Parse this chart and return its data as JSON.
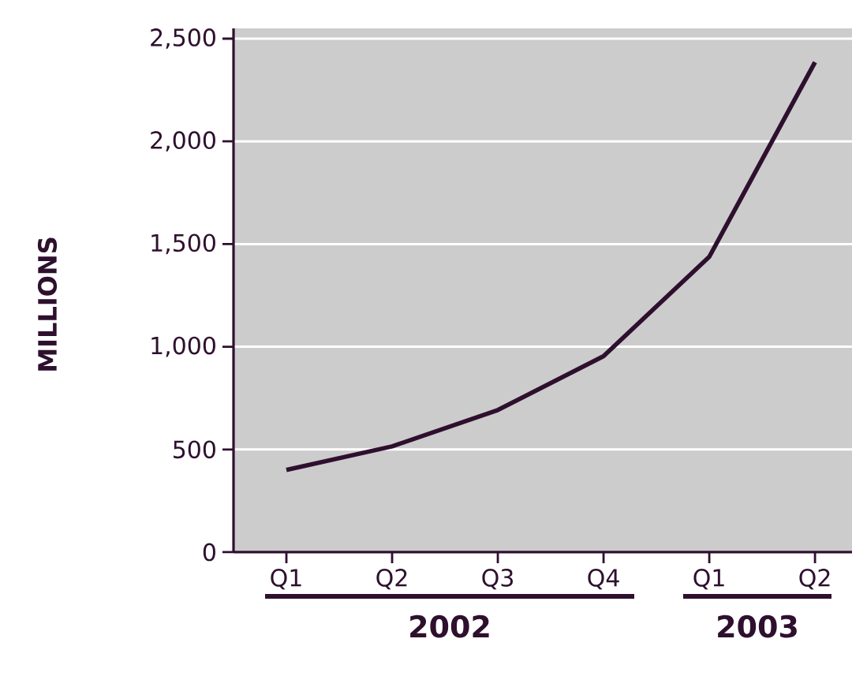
{
  "chart_data": {
    "type": "line",
    "ylabel": "MILLIONS",
    "categories": [
      "Q1",
      "Q2",
      "Q3",
      "Q4",
      "Q1",
      "Q2"
    ],
    "series": [
      {
        "color": "#2e102e",
        "values": [
          400,
          515,
          692,
          954,
          1438,
          2385
        ]
      }
    ],
    "ylim": [
      0,
      2550
    ],
    "yticks": [
      0,
      500,
      {
        "value": 1000,
        "label": "1,000"
      },
      {
        "value": 1500,
        "label": "1,500"
      },
      {
        "value": 2000,
        "label": "2,000"
      },
      {
        "value": 2500,
        "label": "2,500"
      }
    ],
    "grid": "y",
    "marker": "none",
    "line_style": "solid",
    "annotations": [
      "2002",
      "2003"
    ]
  }
}
